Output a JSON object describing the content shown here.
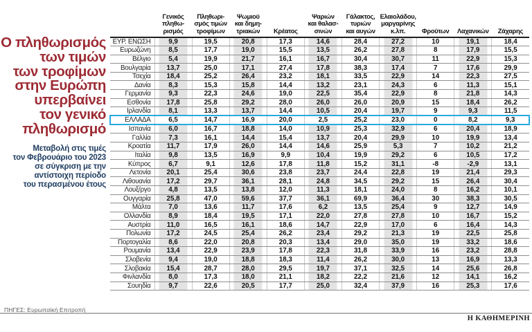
{
  "panel": {
    "title": "Ο πληθωρισμός\nτων τιμών\nτων τροφίμων\nστην Ευρώπη\nυπερβαίνει\nτον γενικό\nπληθωρισμό",
    "subtitle": "Μεταβολή στις τιμές\nτον Φεβρουάριο του 2023\nσε σύγκριση με την\nαντίστοιχη περίοδο\nτου περασμένου έτους",
    "source": "ΠΗΓΕΣ: Ευρωπαϊκή Επιτροπή",
    "brand": "Η ΚΑΘΗΜΕΡΙΝΗ"
  },
  "colors": {
    "headline_red": "#9d2b34",
    "deck_navy": "#203d61",
    "highlight_blue": "#2aa9e0",
    "stripe_gray": "#e3e3e3"
  },
  "chart_data": {
    "type": "table",
    "unit": "percent change year-over-year, February 2023",
    "striped_columns": [
      0,
      2,
      4,
      6,
      8
    ],
    "columns": [
      "Γενικός\nπληθω-\nρισμός",
      "Πληθωρι-\nσμός τιμών\nτροφίμων",
      "Ψωμιού\nκαι δημη-\nτριακών",
      "Κρέατος",
      "Ψαριών\nκαι θαλασ-\nσινών",
      "Γάλακτος,\nτυριών\nκαι αυγών",
      "Ελαιολάδου,\nμαργαρίνης\nκ.λπ.",
      "Φρούτων",
      "Λαχανικών",
      "Ζάχαρης"
    ],
    "rows": [
      {
        "country": "ΕΥΡ. ΕΝΩΣΗ",
        "highlight": false,
        "values": [
          "9,9",
          "19,5",
          "20,8",
          "17,3",
          "14,6",
          "28,4",
          "27,2",
          "10",
          "19,1",
          "18,4"
        ]
      },
      {
        "country": "Ευρωζώνη",
        "highlight": false,
        "values": [
          "8,5",
          "17,7",
          "19,0",
          "15,5",
          "13,5",
          "26,2",
          "27,8",
          "8",
          "17,9",
          "15,5"
        ]
      },
      {
        "country": "Βέλγιο",
        "highlight": false,
        "values": [
          "5,4",
          "19,9",
          "21,7",
          "16,1",
          "16,7",
          "30,4",
          "30,7",
          "11",
          "22,9",
          "15,3"
        ]
      },
      {
        "country": "Βουλγαρία",
        "highlight": false,
        "values": [
          "13,7",
          "25,0",
          "17,1",
          "27,4",
          "17,8",
          "38,3",
          "17,4",
          "7",
          "17,6",
          "29,9"
        ]
      },
      {
        "country": "Τσεχία",
        "highlight": false,
        "values": [
          "18,4",
          "25,2",
          "26,4",
          "23,2",
          "18,1",
          "33,5",
          "22,9",
          "14",
          "22,3",
          "27,5"
        ]
      },
      {
        "country": "Δανία",
        "highlight": false,
        "values": [
          "8,3",
          "15,3",
          "15,8",
          "14,4",
          "13,2",
          "23,1",
          "24,3",
          "6",
          "11,3",
          "15,1"
        ]
      },
      {
        "country": "Γερμανία",
        "highlight": false,
        "values": [
          "9,3",
          "22,3",
          "24,6",
          "19,0",
          "22,5",
          "35,4",
          "22,9",
          "8",
          "21,8",
          "14,3"
        ]
      },
      {
        "country": "Εσθονία",
        "highlight": false,
        "values": [
          "17,8",
          "25,8",
          "29,2",
          "28,0",
          "26,0",
          "26,0",
          "20,9",
          "15",
          "18,4",
          "26,2"
        ]
      },
      {
        "country": "Ιρλανδία",
        "highlight": false,
        "values": [
          "8,1",
          "13,3",
          "13,7",
          "14,4",
          "10,5",
          "20,4",
          "19,7",
          "9",
          "9,3",
          "11,5"
        ]
      },
      {
        "country": "ΕΛΛΑΔΑ",
        "highlight": true,
        "values": [
          "6,5",
          "14,7",
          "16,9",
          "20,0",
          "2,5",
          "25,2",
          "23,0",
          "0",
          "8,2",
          "9,3"
        ]
      },
      {
        "country": "Ισπανία",
        "highlight": false,
        "values": [
          "6,0",
          "16,7",
          "18,8",
          "14,0",
          "10,9",
          "25,3",
          "32,9",
          "6",
          "20,4",
          "18,9"
        ]
      },
      {
        "country": "Γαλλία",
        "highlight": false,
        "values": [
          "7,3",
          "16,1",
          "14,4",
          "15,4",
          "13,7",
          "20,4",
          "29,9",
          "10",
          "19,9",
          "13,4"
        ]
      },
      {
        "country": "Κροατία",
        "highlight": false,
        "values": [
          "11,7",
          "17,9",
          "26,0",
          "14,4",
          "14,6",
          "25,9",
          "5,3",
          "7",
          "10,2",
          "21,2"
        ]
      },
      {
        "country": "Ιταλία",
        "highlight": false,
        "values": [
          "9,8",
          "13,5",
          "16,9",
          "9,9",
          "10,4",
          "19,9",
          "29,2",
          "6",
          "10,5",
          "17,2"
        ]
      },
      {
        "country": "Κύπρος",
        "highlight": false,
        "values": [
          "6,7",
          "9,1",
          "12,6",
          "17,8",
          "11,8",
          "15,2",
          "31,1",
          "-8",
          "-2,9",
          "13,1"
        ]
      },
      {
        "country": "Λετονία",
        "highlight": false,
        "values": [
          "20,1",
          "25,4",
          "30,6",
          "23,8",
          "23,7",
          "24,4",
          "22,8",
          "19",
          "21,4",
          "29,3"
        ]
      },
      {
        "country": "Λιθουανία",
        "highlight": false,
        "values": [
          "17,2",
          "29,7",
          "36,1",
          "28,1",
          "24,8",
          "34,5",
          "29,2",
          "15",
          "26,4",
          "30,4"
        ]
      },
      {
        "country": "Λουξ/ργο",
        "highlight": false,
        "values": [
          "4,8",
          "13,5",
          "13,8",
          "12,0",
          "11,3",
          "18,1",
          "24,0",
          "8",
          "16,2",
          "10,1"
        ]
      },
      {
        "country": "Ουγγαρία",
        "highlight": false,
        "values": [
          "25,8",
          "47,0",
          "59,6",
          "37,7",
          "36,1",
          "69,9",
          "36,4",
          "30",
          "38,3",
          "30,5"
        ]
      },
      {
        "country": "Μάλτα",
        "highlight": false,
        "values": [
          "7,0",
          "13,6",
          "11,7",
          "17,6",
          "6,2",
          "13,5",
          "25,4",
          "9",
          "12,7",
          "14,9"
        ]
      },
      {
        "country": "Ολλανδία",
        "highlight": false,
        "values": [
          "8,9",
          "18,4",
          "19,5",
          "17,1",
          "22,0",
          "27,8",
          "27,8",
          "10",
          "16,7",
          "15,2"
        ]
      },
      {
        "country": "Αυστρία",
        "highlight": false,
        "values": [
          "11,0",
          "16,5",
          "16,1",
          "18,6",
          "14,7",
          "22,9",
          "17,0",
          "6",
          "16,4",
          "14,3"
        ]
      },
      {
        "country": "Πολωνία",
        "highlight": false,
        "values": [
          "17,2",
          "24,5",
          "25,4",
          "26,2",
          "23,4",
          "29,2",
          "21,3",
          "19",
          "22,5",
          "25,8"
        ]
      },
      {
        "country": "Πορτογαλία",
        "highlight": false,
        "values": [
          "8,6",
          "22,0",
          "20,8",
          "20,3",
          "13,4",
          "29,0",
          "35,0",
          "19",
          "33,2",
          "18,6"
        ]
      },
      {
        "country": "Ρουμανία",
        "highlight": false,
        "values": [
          "13,4",
          "22,9",
          "23,9",
          "17,8",
          "22,3",
          "31,8",
          "33,9",
          "16",
          "23,2",
          "28,8"
        ]
      },
      {
        "country": "Σλοβενία",
        "highlight": false,
        "values": [
          "9,4",
          "19,0",
          "18,8",
          "18,3",
          "11,4",
          "26,2",
          "30,0",
          "13",
          "16,9",
          "13,3"
        ]
      },
      {
        "country": "Σλοβακία",
        "highlight": false,
        "values": [
          "15,4",
          "28,7",
          "28,0",
          "29,5",
          "19,7",
          "37,1",
          "32,5",
          "14",
          "25,6",
          "26,8"
        ]
      },
      {
        "country": "Φινλανδία",
        "highlight": false,
        "values": [
          "8,0",
          "17,3",
          "18,0",
          "21,1",
          "18,2",
          "22,2",
          "21,6",
          "12",
          "14,1",
          "16,2"
        ]
      },
      {
        "country": "Σουηδία",
        "highlight": false,
        "values": [
          "9,7",
          "22,6",
          "20,5",
          "17,7",
          "25,0",
          "32,4",
          "37,9",
          "16",
          "25,3",
          "17,6"
        ]
      }
    ]
  }
}
